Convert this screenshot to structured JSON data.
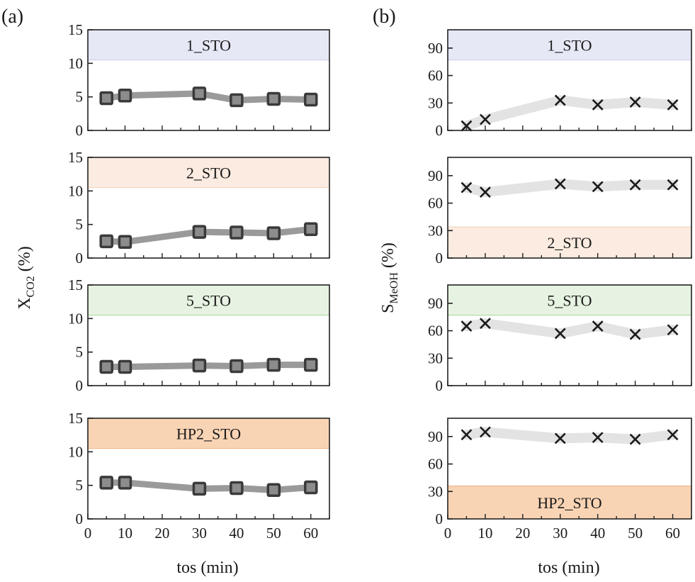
{
  "panels": {
    "a": {
      "label": "(a)",
      "ylabel_main": "X",
      "ylabel_sub": "CO2",
      "ylabel_unit": " (%)"
    },
    "b": {
      "label": "(b)",
      "ylabel_main": "S",
      "ylabel_sub": "MeOH",
      "ylabel_unit": " (%)"
    },
    "xlabel": "tos (min)"
  },
  "chart_data": [
    {
      "type": "line",
      "panel": "a",
      "sample": "1_STO",
      "band_color": "#e6e8f6",
      "band_edge": "#c9cbe8",
      "x": [
        5,
        10,
        30,
        40,
        50,
        60
      ],
      "y": [
        4.8,
        5.2,
        5.5,
        4.5,
        4.7,
        4.6
      ],
      "xlim": [
        0,
        65
      ],
      "ylim": [
        0,
        15
      ],
      "yticks": [
        0,
        5,
        10,
        15
      ],
      "band": [
        10.5,
        15
      ],
      "xlabel": "tos (min)",
      "ylabel": "X_CO2 (%)",
      "marker": "square"
    },
    {
      "type": "line",
      "panel": "a",
      "sample": "2_STO",
      "band_color": "#fbebe0",
      "band_edge": "#f0cfb5",
      "x": [
        5,
        10,
        30,
        40,
        50,
        60
      ],
      "y": [
        2.5,
        2.4,
        3.9,
        3.8,
        3.7,
        4.3
      ],
      "xlim": [
        0,
        65
      ],
      "ylim": [
        0,
        15
      ],
      "yticks": [
        0,
        5,
        10,
        15
      ],
      "band": [
        10.5,
        15
      ],
      "xlabel": "tos (min)",
      "ylabel": "X_CO2 (%)",
      "marker": "square"
    },
    {
      "type": "line",
      "panel": "a",
      "sample": "5_STO",
      "band_color": "#e7f3e2",
      "band_edge": "#a8d49b",
      "x": [
        5,
        10,
        30,
        40,
        50,
        60
      ],
      "y": [
        2.8,
        2.8,
        3.0,
        2.9,
        3.1,
        3.1
      ],
      "xlim": [
        0,
        65
      ],
      "ylim": [
        0,
        15
      ],
      "yticks": [
        0,
        5,
        10,
        15
      ],
      "band": [
        10.5,
        15
      ],
      "xlabel": "tos (min)",
      "ylabel": "X_CO2 (%)",
      "marker": "square"
    },
    {
      "type": "line",
      "panel": "a",
      "sample": "HP2_STO",
      "band_color": "#f9d4b4",
      "band_edge": "#f0b080",
      "x": [
        5,
        10,
        30,
        40,
        50,
        60
      ],
      "y": [
        5.4,
        5.4,
        4.5,
        4.6,
        4.3,
        4.7
      ],
      "xlim": [
        0,
        65
      ],
      "ylim": [
        0,
        15
      ],
      "yticks": [
        0,
        5,
        10,
        15
      ],
      "band": [
        10.5,
        15
      ],
      "xlabel": "tos (min)",
      "ylabel": "X_CO2 (%)",
      "marker": "square"
    },
    {
      "type": "scatter",
      "panel": "b",
      "sample": "1_STO",
      "band_color": "#e6e8f6",
      "band_edge": "#c9cbe8",
      "x": [
        5,
        10,
        30,
        40,
        50,
        60
      ],
      "y": [
        5,
        12,
        33,
        28,
        31,
        28
      ],
      "xlim": [
        0,
        65
      ],
      "ylim": [
        0,
        110
      ],
      "yticks": [
        0,
        30,
        60,
        90
      ],
      "band": [
        77,
        110
      ],
      "xlabel": "tos (min)",
      "ylabel": "S_MeOH (%)",
      "marker": "x"
    },
    {
      "type": "scatter",
      "panel": "b",
      "sample": "2_STO",
      "band_color": "#fbebe0",
      "band_edge": "#f0cfb5",
      "x": [
        5,
        10,
        30,
        40,
        50,
        60
      ],
      "y": [
        77,
        72,
        81,
        78,
        80,
        80
      ],
      "xlim": [
        0,
        65
      ],
      "ylim": [
        0,
        110
      ],
      "yticks": [
        0,
        30,
        60,
        90
      ],
      "band": [
        0,
        34
      ],
      "xlabel": "tos (min)",
      "ylabel": "S_MeOH (%)",
      "marker": "x"
    },
    {
      "type": "scatter",
      "panel": "b",
      "sample": "5_STO",
      "band_color": "#e7f3e2",
      "band_edge": "#a8d49b",
      "x": [
        5,
        10,
        30,
        40,
        50,
        60
      ],
      "y": [
        65,
        68,
        57,
        65,
        56,
        61
      ],
      "xlim": [
        0,
        65
      ],
      "ylim": [
        0,
        110
      ],
      "yticks": [
        0,
        30,
        60,
        90
      ],
      "band": [
        77,
        110
      ],
      "xlabel": "tos (min)",
      "ylabel": "S_MeOH (%)",
      "marker": "x"
    },
    {
      "type": "scatter",
      "panel": "b",
      "sample": "HP2_STO",
      "band_color": "#f9d4b4",
      "band_edge": "#f0b080",
      "x": [
        5,
        10,
        30,
        40,
        50,
        60
      ],
      "y": [
        92,
        95,
        88,
        89,
        87,
        92
      ],
      "xlim": [
        0,
        65
      ],
      "ylim": [
        0,
        110
      ],
      "yticks": [
        0,
        30,
        60,
        90
      ],
      "band": [
        0,
        36
      ],
      "xlabel": "tos (min)",
      "ylabel": "S_MeOH (%)",
      "marker": "x"
    }
  ],
  "xticks": [
    0,
    10,
    20,
    30,
    40,
    50,
    60
  ]
}
